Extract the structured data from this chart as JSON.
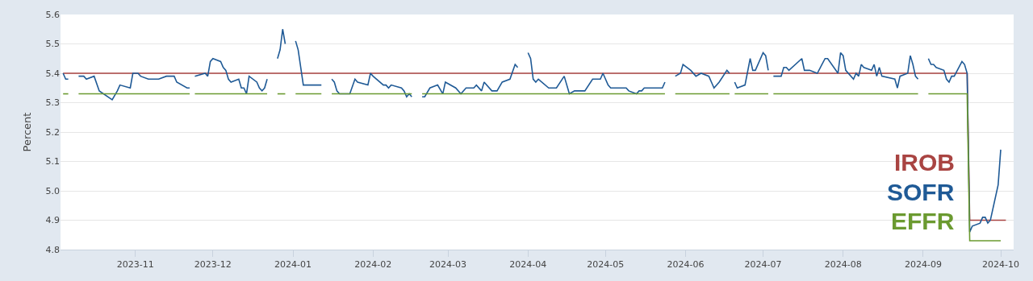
{
  "chart_data": {
    "type": "line",
    "ylabel": "Percent",
    "ylim": [
      4.8,
      5.6
    ],
    "yticks": [
      {
        "value": 4.8,
        "label": "4.8"
      },
      {
        "value": 4.9,
        "label": "4.9"
      },
      {
        "value": 5.0,
        "label": "5.0"
      },
      {
        "value": 5.1,
        "label": "5.1"
      },
      {
        "value": 5.2,
        "label": "5.2"
      },
      {
        "value": 5.3,
        "label": "5.3"
      },
      {
        "value": 5.4,
        "label": "5.4"
      },
      {
        "value": 5.5,
        "label": "5.5"
      },
      {
        "value": 5.6,
        "label": "5.6"
      }
    ],
    "xlim": [
      "2023-10-03",
      "2024-10-06"
    ],
    "xticks": [
      "2023-11",
      "2023-12",
      "2024-01",
      "2024-02",
      "2024-03",
      "2024-04",
      "2024-05",
      "2024-06",
      "2024-07",
      "2024-08",
      "2024-09",
      "2024-10"
    ],
    "grid": "y",
    "legend": false,
    "marker": "none",
    "line_style": "solid",
    "series": [
      {
        "name": "IROB",
        "color": "#a94442",
        "x": [
          "2023-10-04",
          "2024-09-18",
          "2024-09-19",
          "2024-10-03"
        ],
        "values": [
          5.4,
          5.4,
          4.9,
          4.9
        ]
      },
      {
        "name": "SOFR",
        "color": "#1f5a96",
        "x": [
          "2023-10-04",
          "2023-10-05",
          "2023-10-06",
          "2023-10-09",
          "2023-10-10",
          "2023-10-12",
          "2023-10-13",
          "2023-10-16",
          "2023-10-18",
          "2023-10-23",
          "2023-10-25",
          "2023-10-26",
          "2023-10-30",
          "2023-10-31",
          "2023-11-02",
          "2023-11-03",
          "2023-11-06",
          "2023-11-10",
          "2023-11-13",
          "2023-11-16",
          "2023-11-17",
          "2023-11-21",
          "2023-11-22",
          "2023-11-23",
          "2023-11-24",
          "2023-11-28",
          "2023-11-29",
          "2023-11-30",
          "2023-12-01",
          "2023-12-04",
          "2023-12-05",
          "2023-12-06",
          "2023-12-07",
          "2023-12-08",
          "2023-12-11",
          "2023-12-12",
          "2023-12-13",
          "2023-12-14",
          "2023-12-15",
          "2023-12-18",
          "2023-12-19",
          "2023-12-20",
          "2023-12-21",
          "2023-12-22",
          "2023-12-25",
          "2023-12-26",
          "2023-12-27",
          "2023-12-28",
          "2023-12-29",
          "2024-01-01",
          "2024-01-02",
          "2024-01-03",
          "2024-01-05",
          "2024-01-12",
          "2024-01-15",
          "2024-01-16",
          "2024-01-17",
          "2024-01-18",
          "2024-01-19",
          "2024-01-23",
          "2024-01-25",
          "2024-01-26",
          "2024-01-30",
          "2024-01-31",
          "2024-02-01",
          "2024-02-05",
          "2024-02-06",
          "2024-02-07",
          "2024-02-08",
          "2024-02-12",
          "2024-02-13",
          "2024-02-14",
          "2024-02-15",
          "2024-02-16",
          "2024-02-19",
          "2024-02-20",
          "2024-02-21",
          "2024-02-23",
          "2024-02-26",
          "2024-02-28",
          "2024-02-29",
          "2024-03-04",
          "2024-03-06",
          "2024-03-08",
          "2024-03-11",
          "2024-03-12",
          "2024-03-14",
          "2024-03-15",
          "2024-03-18",
          "2024-03-20",
          "2024-03-22",
          "2024-03-25",
          "2024-03-27",
          "2024-03-28",
          "2024-03-29",
          "2024-04-01",
          "2024-04-02",
          "2024-04-03",
          "2024-04-04",
          "2024-04-05",
          "2024-04-09",
          "2024-04-12",
          "2024-04-15",
          "2024-04-17",
          "2024-04-19",
          "2024-04-23",
          "2024-04-26",
          "2024-04-29",
          "2024-04-30",
          "2024-05-02",
          "2024-05-03",
          "2024-05-09",
          "2024-05-10",
          "2024-05-13",
          "2024-05-14",
          "2024-05-15",
          "2024-05-16",
          "2024-05-23",
          "2024-05-24",
          "2024-05-27",
          "2024-05-28",
          "2024-05-30",
          "2024-05-31",
          "2024-06-03",
          "2024-06-05",
          "2024-06-07",
          "2024-06-10",
          "2024-06-11",
          "2024-06-12",
          "2024-06-14",
          "2024-06-17",
          "2024-06-18",
          "2024-06-19",
          "2024-06-20",
          "2024-06-21",
          "2024-06-24",
          "2024-06-26",
          "2024-06-27",
          "2024-06-28",
          "2024-07-01",
          "2024-07-02",
          "2024-07-03",
          "2024-07-04",
          "2024-07-05",
          "2024-07-08",
          "2024-07-09",
          "2024-07-10",
          "2024-07-11",
          "2024-07-16",
          "2024-07-17",
          "2024-07-19",
          "2024-07-22",
          "2024-07-25",
          "2024-07-26",
          "2024-07-30",
          "2024-07-31",
          "2024-08-01",
          "2024-08-02",
          "2024-08-05",
          "2024-08-06",
          "2024-08-07",
          "2024-08-08",
          "2024-08-09",
          "2024-08-12",
          "2024-08-13",
          "2024-08-14",
          "2024-08-15",
          "2024-08-16",
          "2024-08-21",
          "2024-08-22",
          "2024-08-23",
          "2024-08-26",
          "2024-08-27",
          "2024-08-28",
          "2024-08-29",
          "2024-08-30",
          "2024-09-02",
          "2024-09-03",
          "2024-09-04",
          "2024-09-05",
          "2024-09-06",
          "2024-09-09",
          "2024-09-10",
          "2024-09-11",
          "2024-09-12",
          "2024-09-13",
          "2024-09-16",
          "2024-09-17",
          "2024-09-18",
          "2024-09-19",
          "2024-09-20",
          "2024-09-23",
          "2024-09-24",
          "2024-09-25",
          "2024-09-26",
          "2024-09-27",
          "2024-09-30",
          "2024-10-01"
        ],
        "values": [
          5.4,
          5.38,
          5.38,
          null,
          5.39,
          5.39,
          5.38,
          5.39,
          5.34,
          5.31,
          5.34,
          5.36,
          5.35,
          5.4,
          5.4,
          5.39,
          5.38,
          5.38,
          5.39,
          5.39,
          5.37,
          5.35,
          5.35,
          null,
          5.39,
          5.4,
          5.39,
          5.44,
          5.45,
          5.44,
          5.42,
          5.41,
          5.38,
          5.37,
          5.38,
          5.35,
          5.35,
          5.33,
          5.39,
          5.37,
          5.35,
          5.34,
          5.35,
          5.38,
          null,
          5.45,
          5.48,
          5.55,
          5.5,
          null,
          5.51,
          5.48,
          5.36,
          5.36,
          null,
          5.38,
          5.37,
          5.34,
          5.33,
          5.33,
          5.38,
          5.37,
          5.36,
          5.4,
          5.39,
          5.36,
          5.36,
          5.35,
          5.36,
          5.35,
          5.34,
          5.32,
          5.33,
          5.32,
          null,
          5.32,
          5.32,
          5.35,
          5.36,
          5.33,
          5.37,
          5.35,
          5.33,
          5.35,
          5.35,
          5.36,
          5.34,
          5.37,
          5.34,
          5.34,
          5.37,
          5.38,
          5.43,
          5.42,
          null,
          5.47,
          5.45,
          5.38,
          5.37,
          5.38,
          5.35,
          5.35,
          5.39,
          5.33,
          5.34,
          5.34,
          5.38,
          5.38,
          5.4,
          5.36,
          5.35,
          5.35,
          5.34,
          5.33,
          5.34,
          5.34,
          5.35,
          5.35,
          5.37,
          null,
          5.39,
          5.4,
          5.43,
          5.41,
          5.39,
          5.4,
          5.39,
          5.37,
          5.35,
          5.37,
          5.41,
          5.4,
          null,
          5.37,
          5.35,
          5.36,
          5.45,
          5.41,
          5.41,
          5.47,
          5.46,
          5.41,
          null,
          5.39,
          5.39,
          5.42,
          5.42,
          5.41,
          5.45,
          5.41,
          5.41,
          5.4,
          5.45,
          5.45,
          5.4,
          5.47,
          5.46,
          5.41,
          5.38,
          5.4,
          5.39,
          5.43,
          5.42,
          5.41,
          5.43,
          5.39,
          5.42,
          5.39,
          5.38,
          5.35,
          5.39,
          5.4,
          5.46,
          5.43,
          5.39,
          5.38,
          null,
          5.45,
          5.43,
          5.43,
          5.42,
          5.41,
          5.38,
          5.37,
          5.39,
          5.39,
          5.44,
          5.43,
          5.4,
          4.86,
          4.88,
          4.89,
          4.91,
          4.91,
          4.89,
          4.9,
          5.02,
          5.14
        ]
      },
      {
        "name": "EFFR",
        "color": "#6b9a30",
        "x": [
          "2023-10-04",
          "2023-10-06",
          "2023-10-09",
          "2023-10-10",
          "2023-11-22",
          "2023-11-23",
          "2023-11-24",
          "2023-12-22",
          "2023-12-25",
          "2023-12-26",
          "2023-12-29",
          "2024-01-01",
          "2024-01-02",
          "2024-01-12",
          "2024-01-15",
          "2024-01-16",
          "2024-02-16",
          "2024-02-19",
          "2024-02-20",
          "2024-05-24",
          "2024-05-27",
          "2024-05-28",
          "2024-06-18",
          "2024-06-19",
          "2024-06-20",
          "2024-07-03",
          "2024-07-04",
          "2024-07-05",
          "2024-08-30",
          "2024-09-02",
          "2024-09-03",
          "2024-09-18",
          "2024-09-19",
          "2024-10-01"
        ],
        "values": [
          5.33,
          5.33,
          null,
          5.33,
          5.33,
          null,
          5.33,
          5.33,
          null,
          5.33,
          5.33,
          null,
          5.33,
          5.33,
          null,
          5.33,
          5.33,
          null,
          5.33,
          5.33,
          null,
          5.33,
          5.33,
          null,
          5.33,
          5.33,
          null,
          5.33,
          5.33,
          null,
          5.33,
          5.33,
          4.83,
          4.83
        ]
      }
    ]
  }
}
